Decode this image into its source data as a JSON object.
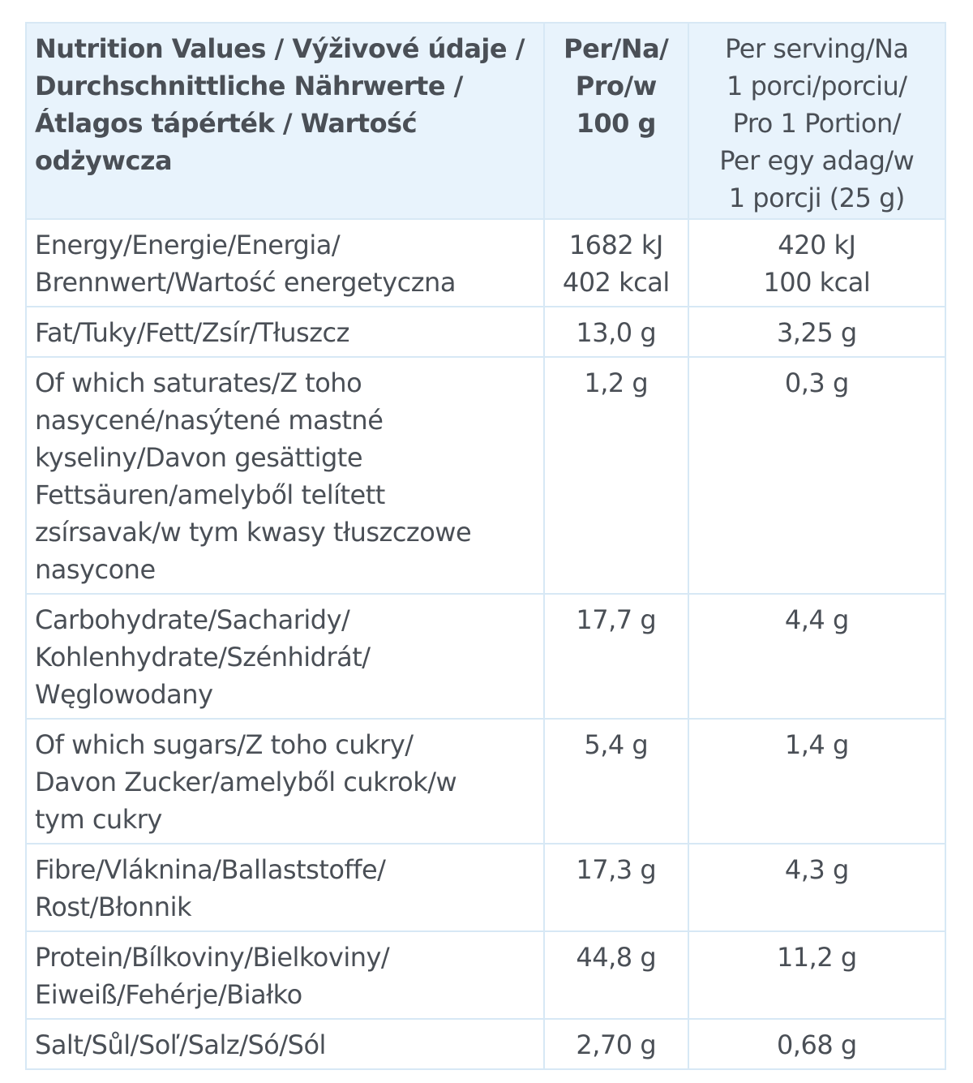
{
  "header": {
    "name": "Nutrition Values / Výživové údaje / Durchschnittliche Nährwerte / Átlagos tápérték / Wartość odżywcza",
    "per_100g": "Per/Na/\nPro/w\n100 g",
    "per_serving": "Per serving/Na\n1 porci/porciu/\nPro 1 Portion/\nPer egy adag/w\n1 porcji (25 g)"
  },
  "rows": [
    {
      "name": "Energy/Energie/Energia/\nBrennwert/Wartość energetyczna",
      "per_100g": "1682 kJ\n402 kcal",
      "per_serving": "420 kJ\n100 kcal"
    },
    {
      "name": "Fat/Tuky/Fett/Zsír/Tłuszcz",
      "per_100g": "13,0 g",
      "per_serving": "3,25 g"
    },
    {
      "name": "Of which saturates/Z toho\nnasycené/nasýtené mastné\nkyseliny/Davon gesättigte\nFettsäuren/amelyből telített\nzsírsavak/w tym kwasy tłuszczowe\nnasycone",
      "per_100g": "1,2 g",
      "per_serving": "0,3 g"
    },
    {
      "name": "Carbohydrate/Sacharidy/\nKohlenhydrate/Szénhidrát/\nWęglowodany",
      "per_100g": "17,7 g",
      "per_serving": "4,4 g"
    },
    {
      "name": "Of which sugars/Z toho cukry/\nDavon Zucker/amelyből cukrok/w\ntym cukry",
      "per_100g": "5,4 g",
      "per_serving": "1,4 g"
    },
    {
      "name": "Fibre/Vláknina/Ballaststoffe/\nRost/Błonnik",
      "per_100g": "17,3 g",
      "per_serving": "4,3 g"
    },
    {
      "name": "Protein/Bílkoviny/Bielkoviny/\nEiweiß/Fehérje/Białko",
      "per_100g": "44,8 g",
      "per_serving": "11,2 g"
    },
    {
      "name": "Salt/Sůl/Soľ/Salz/Só/Sól",
      "per_100g": "2,70 g",
      "per_serving": "0,68 g"
    }
  ],
  "colors": {
    "header_background": "#e8f3fc",
    "border": "#d7e8f5",
    "text": "#4a4f56"
  }
}
